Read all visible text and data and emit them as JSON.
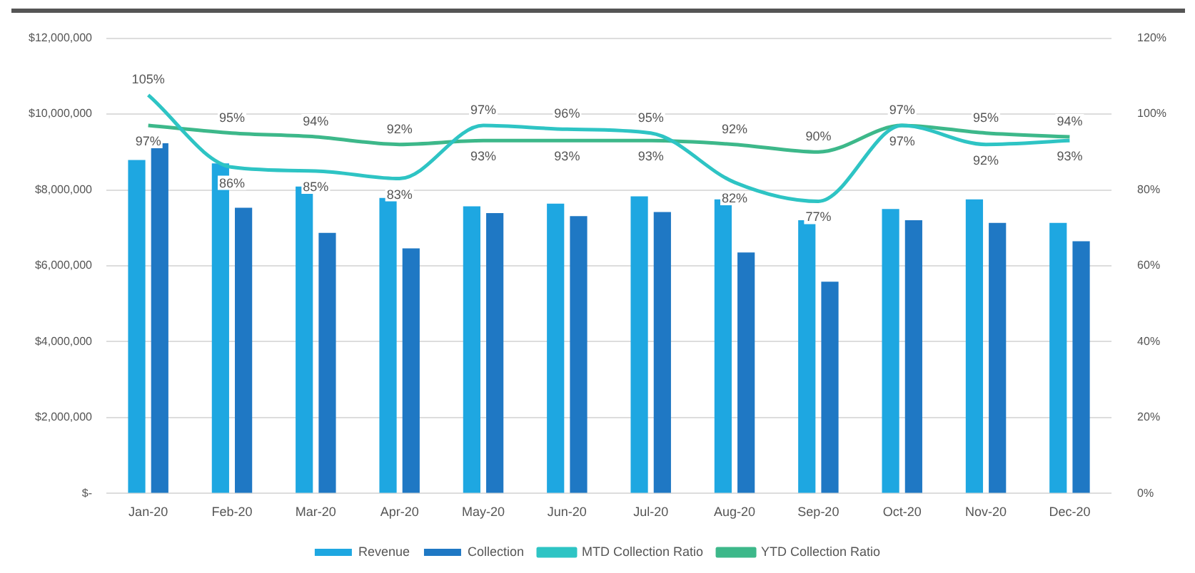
{
  "chart_data": {
    "type": "bar",
    "categories": [
      "Jan-20",
      "Feb-20",
      "Mar-20",
      "Apr-20",
      "May-20",
      "Jun-20",
      "Jul-20",
      "Aug-20",
      "Sep-20",
      "Oct-20",
      "Nov-20",
      "Dec-20"
    ],
    "series": [
      {
        "name": "Revenue",
        "color": "#1ea7e1",
        "values": [
          8790000,
          8700000,
          8090000,
          7790000,
          7570000,
          7640000,
          7830000,
          7750000,
          7200000,
          7500000,
          7750000,
          7130000
        ]
      },
      {
        "name": "Collection",
        "color": "#1f78c4",
        "values": [
          9230000,
          7530000,
          6870000,
          6460000,
          7390000,
          7310000,
          7420000,
          6350000,
          5580000,
          7200000,
          7130000,
          6650000
        ]
      },
      {
        "name": "MTD Collection Ratio",
        "type": "line",
        "axis": "y2",
        "color": "#2ec4c4",
        "values": [
          105,
          86,
          85,
          83,
          97,
          96,
          95,
          82,
          77,
          97,
          92,
          93
        ],
        "value_labels": [
          "105%",
          "86%",
          "85%",
          "83%",
          "97%",
          "96%",
          "95%",
          "82%",
          "77%",
          "97%",
          "92%",
          "93%"
        ]
      },
      {
        "name": "YTD Collection Ratio",
        "type": "line",
        "axis": "y2",
        "color": "#3db88a",
        "values": [
          97,
          95,
          94,
          92,
          93,
          93,
          93,
          92,
          90,
          97,
          95,
          94
        ],
        "value_labels": [
          "97%",
          "95%",
          "94%",
          "92%",
          "93%",
          "93%",
          "93%",
          "92%",
          "90%",
          "97%",
          "95%",
          "94%"
        ]
      }
    ],
    "ylim": [
      0,
      12000000
    ],
    "yticks": [
      {
        "value": 0,
        "label": "$-"
      },
      {
        "value": 2000000,
        "label": "$2,000,000"
      },
      {
        "value": 4000000,
        "label": "$4,000,000"
      },
      {
        "value": 6000000,
        "label": "$6,000,000"
      },
      {
        "value": 8000000,
        "label": "$8,000,000"
      },
      {
        "value": 10000000,
        "label": "$10,000,000"
      },
      {
        "value": 12000000,
        "label": "$12,000,000"
      }
    ],
    "y2lim": [
      0,
      120
    ],
    "y2ticks": [
      {
        "value": 0,
        "label": "0%"
      },
      {
        "value": 20,
        "label": "20%"
      },
      {
        "value": 40,
        "label": "40%"
      },
      {
        "value": 60,
        "label": "60%"
      },
      {
        "value": 80,
        "label": "80%"
      },
      {
        "value": 100,
        "label": "100%"
      },
      {
        "value": 120,
        "label": "120%"
      }
    ],
    "grid": "y",
    "legend": "bottom",
    "marker": "none"
  }
}
